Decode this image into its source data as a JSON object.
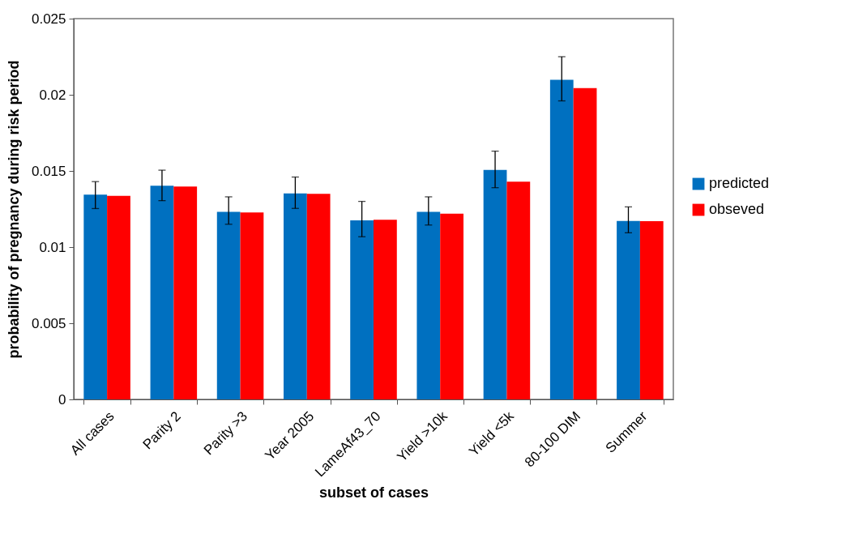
{
  "chart_data": {
    "type": "bar",
    "xlabel": "subset of cases",
    "ylabel": "probability of pregnancy during risk period",
    "categories": [
      "All cases",
      "Parity 2",
      "Parity >3",
      "Year 2005",
      "LameAf43_70",
      "Yield >10k",
      "Yield <5k",
      "80-100 DIM",
      "Summer"
    ],
    "series": [
      {
        "name": "predicted",
        "color": "#0070c0",
        "values": [
          0.01344,
          0.01403,
          0.01232,
          0.01352,
          0.01176,
          0.01232,
          0.01506,
          0.02098,
          0.01171
        ],
        "errors": [
          [
            0.01253,
            0.0143
          ],
          [
            0.01305,
            0.01505
          ],
          [
            0.0115,
            0.0133
          ],
          [
            0.01254,
            0.0146
          ],
          [
            0.01068,
            0.013
          ],
          [
            0.01145,
            0.0133
          ],
          [
            0.0139,
            0.0163
          ],
          [
            0.0196,
            0.0225
          ],
          [
            0.01094,
            0.01264
          ]
        ]
      },
      {
        "name": "obseved",
        "color": "#ff0000",
        "values": [
          0.01337,
          0.01398,
          0.01227,
          0.0135,
          0.0118,
          0.0122,
          0.01429,
          0.02044,
          0.0117
        ]
      }
    ],
    "ylim": [
      0,
      0.025
    ],
    "yticks": [
      0,
      0.005,
      0.01,
      0.015,
      0.02,
      0.025
    ],
    "grid": false,
    "legend": "right"
  }
}
